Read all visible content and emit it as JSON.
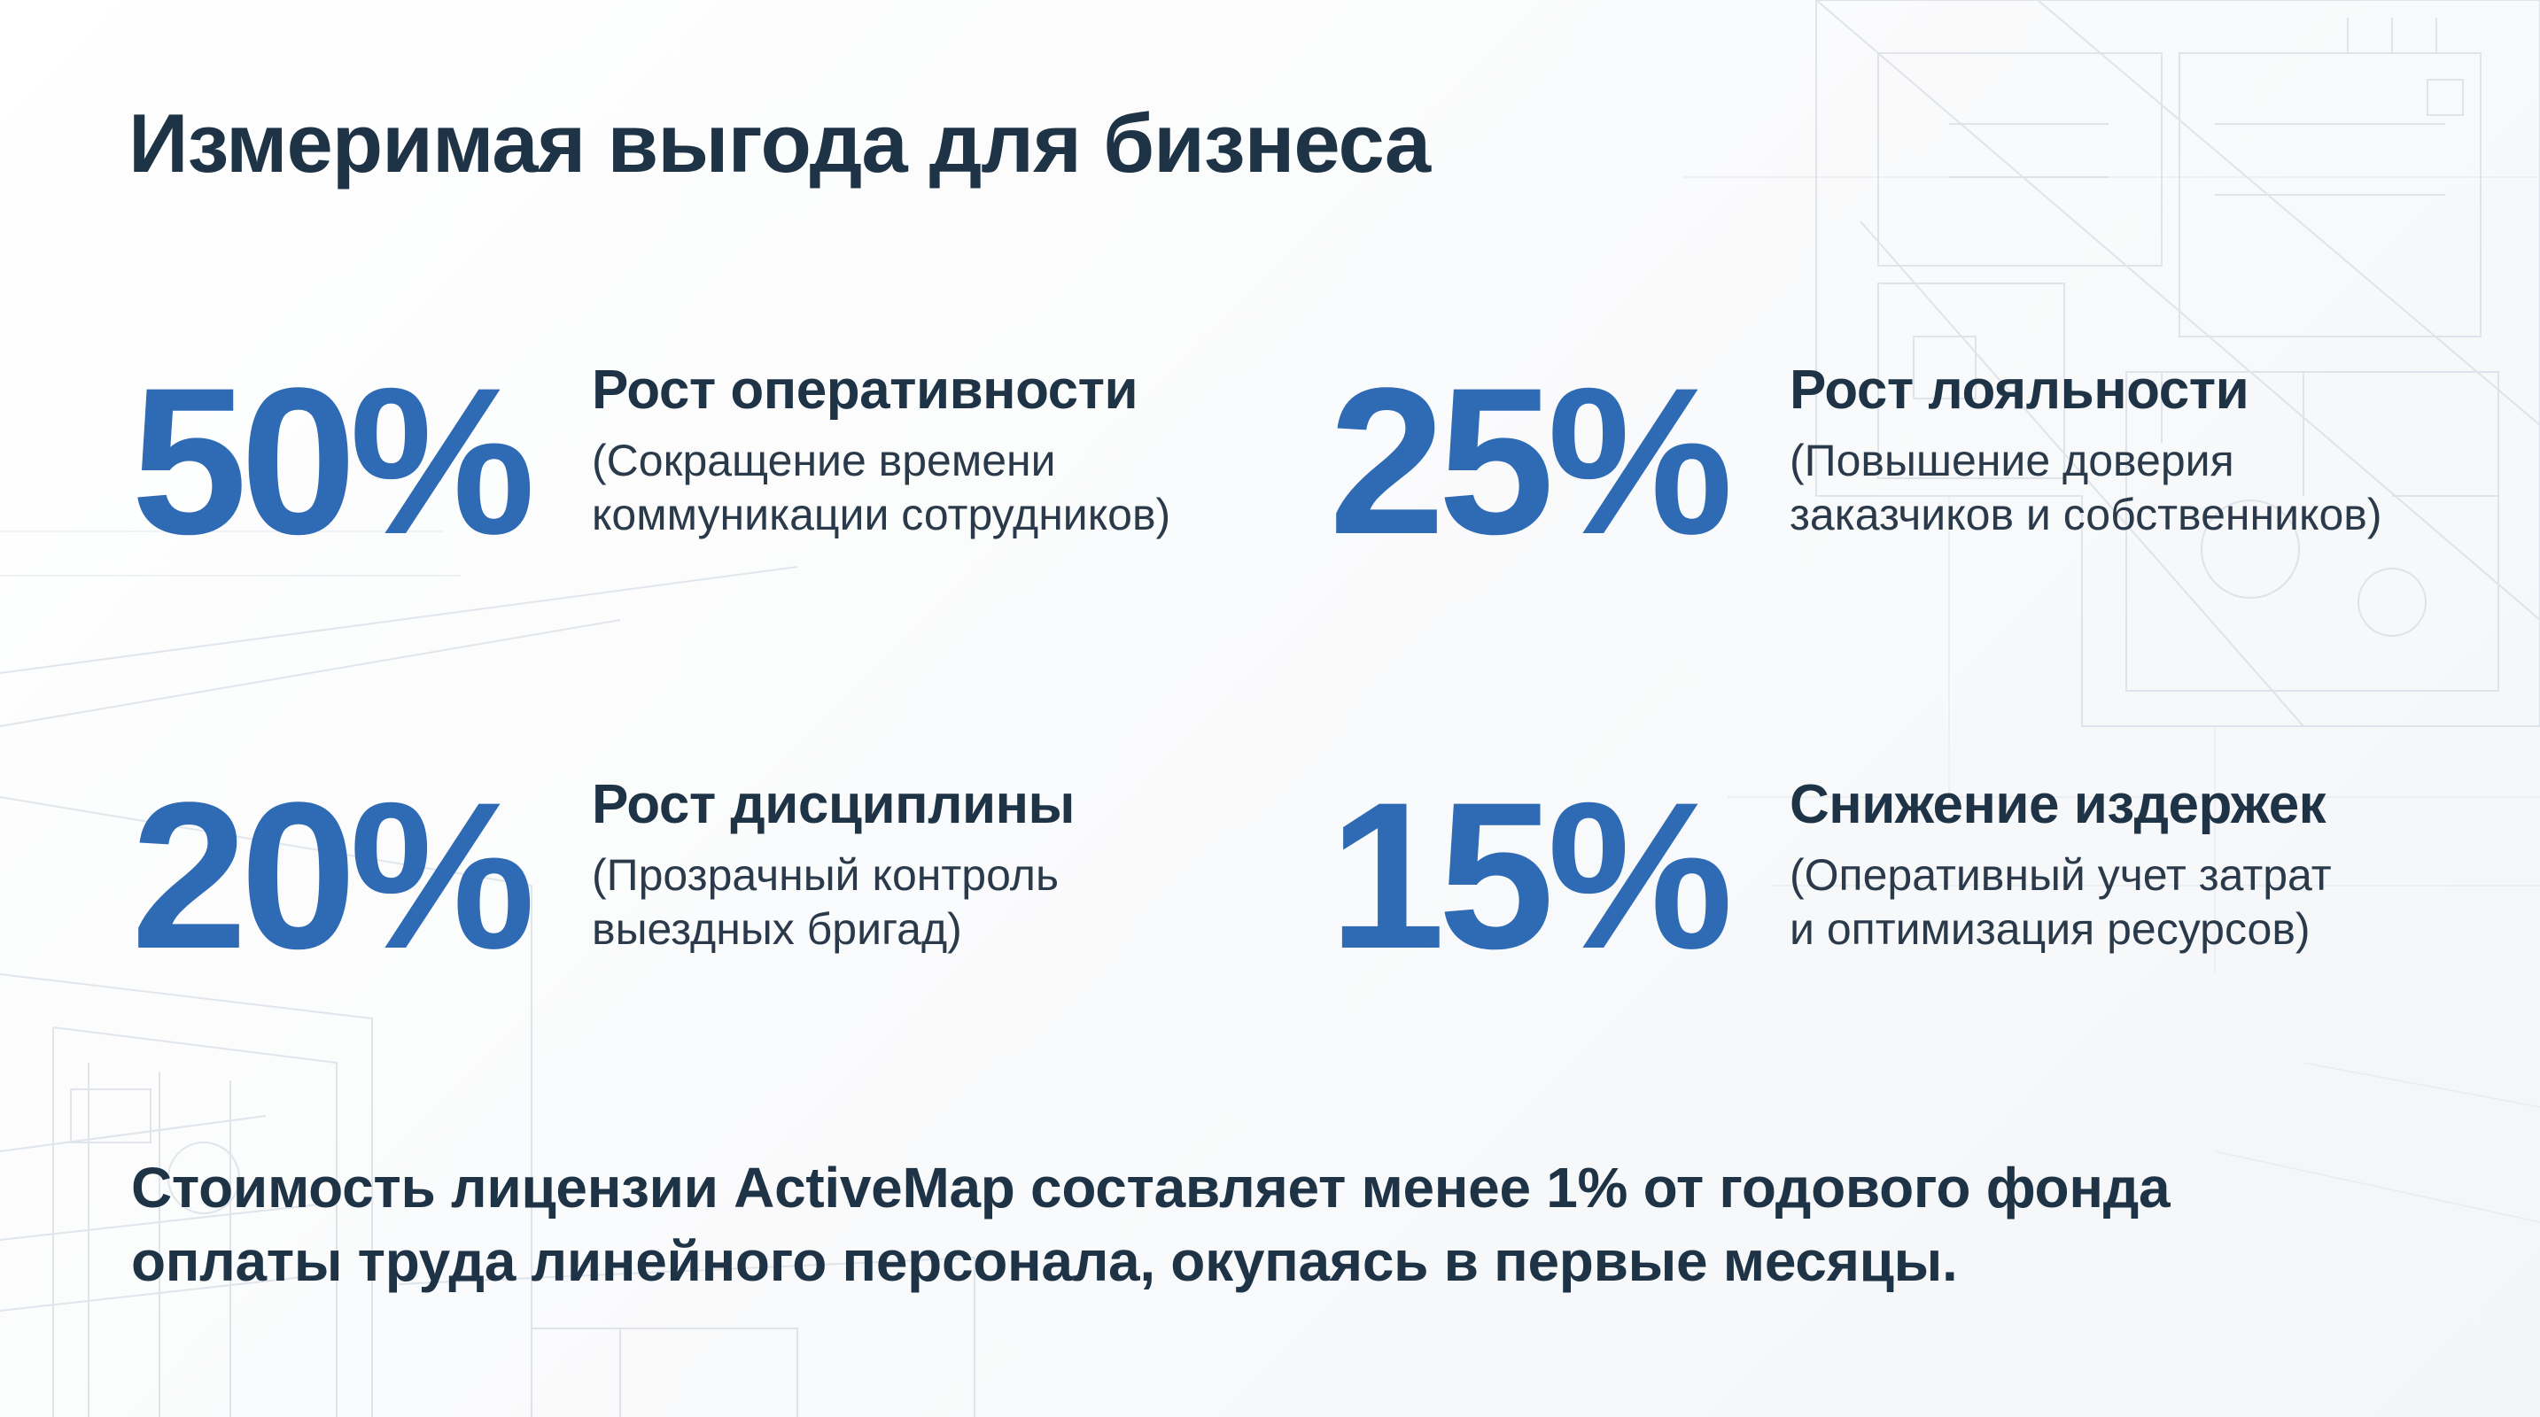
{
  "slide": {
    "title": "Измеримая выгода для бизнеса",
    "metrics": [
      {
        "value": "50%",
        "heading": "Рост оперативности",
        "desc_line1": "(Сокращение времени",
        "desc_line2": "коммуникации сотрудников)"
      },
      {
        "value": "25%",
        "heading": "Рост лояльности",
        "desc_line1": "(Повышение доверия",
        "desc_line2": "заказчиков и собственников)"
      },
      {
        "value": "20%",
        "heading": "Рост дисциплины",
        "desc_line1": "(Прозрачный контроль",
        "desc_line2": "выездных бригад)"
      },
      {
        "value": "15%",
        "heading": "Снижение издержек",
        "desc_line1": "(Оперативный учет затрат",
        "desc_line2": "и оптимизация ресурсов)"
      }
    ],
    "footer_line1": "Стоимость лицензии ActiveMap составляет менее 1% от годового фонда",
    "footer_line2": "оплаты труда линейного персонала, окупаясь в первые месяцы."
  },
  "colors": {
    "accent": "#2f6ab5",
    "text_dark": "#1f3346",
    "background": "#fafbfc"
  }
}
